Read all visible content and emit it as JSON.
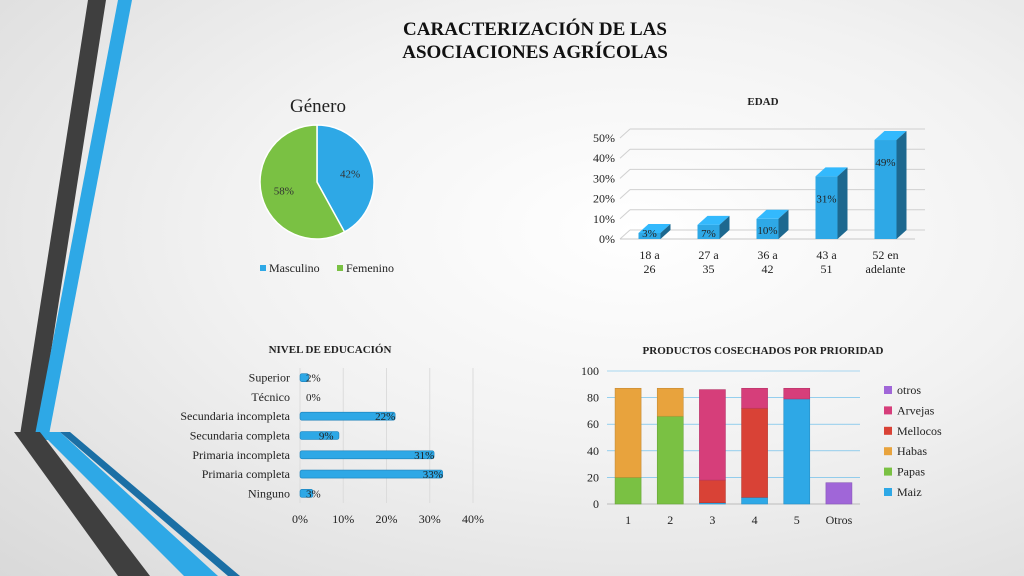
{
  "page": {
    "title_line1": "CARACTERIZACIÓN DE LAS",
    "title_line2": "ASOCIACIONES AGRÍCOLAS"
  },
  "colors": {
    "blue": "#2ea8e6",
    "green": "#7ac143",
    "orange": "#e8a33d",
    "red": "#d94236",
    "pink": "#d63e7a",
    "purple": "#a066d8",
    "dark_stripe": "#3f3f3f"
  },
  "chart_data": [
    {
      "id": "genero",
      "type": "pie",
      "title": "Género",
      "labels": [
        "Masculino",
        "Femenino"
      ],
      "values": [
        42,
        58
      ],
      "data_labels": [
        "42%",
        "58%"
      ],
      "legend": "bottom"
    },
    {
      "id": "edad",
      "type": "bar",
      "title": "EDAD",
      "categories": [
        "18 a  26",
        "27 a 35",
        "36 a 42",
        "43 a 51",
        "52 en adelante"
      ],
      "values": [
        3,
        7,
        10,
        31,
        49
      ],
      "data_labels": [
        "3%",
        "7%",
        "10%",
        "31%",
        "49%"
      ],
      "yticks": [
        "0%",
        "10%",
        "20%",
        "30%",
        "40%",
        "50%"
      ],
      "ylim": [
        0,
        50
      ],
      "grid": true,
      "style": "3d-columns"
    },
    {
      "id": "educacion",
      "type": "bar",
      "orientation": "horizontal",
      "title": "NIVEL DE EDUCACIÓN",
      "categories": [
        "Superior",
        "Técnico",
        "Secundaria incompleta",
        "Secundaria completa",
        "Primaria incompleta",
        "Primaria completa",
        "Ninguno"
      ],
      "values": [
        2,
        0,
        22,
        9,
        31,
        33,
        3
      ],
      "data_labels": [
        "2%",
        "0%",
        "22%",
        "9%",
        "31%",
        "33%",
        "3%"
      ],
      "xticks": [
        "0%",
        "10%",
        "20%",
        "30%",
        "40%"
      ],
      "xlim": [
        0,
        40
      ]
    },
    {
      "id": "productos",
      "type": "bar",
      "stacked": true,
      "title": "PRODUCTOS COSECHADOS POR PRIORIDAD",
      "categories": [
        "1",
        "2",
        "3",
        "4",
        "5",
        "Otros"
      ],
      "series": [
        {
          "name": "Maiz",
          "values": [
            0,
            0,
            1,
            5,
            79,
            0
          ]
        },
        {
          "name": "Papas",
          "values": [
            20,
            66,
            0,
            0,
            0,
            0
          ]
        },
        {
          "name": "Habas",
          "values": [
            67,
            21,
            0,
            0,
            0,
            0
          ]
        },
        {
          "name": "Mellocos",
          "values": [
            0,
            0,
            17,
            67,
            0,
            0
          ]
        },
        {
          "name": "Arvejas",
          "values": [
            0,
            0,
            68,
            15,
            8,
            0
          ]
        },
        {
          "name": "otros",
          "values": [
            0,
            0,
            0,
            0,
            0,
            16
          ]
        }
      ],
      "yticks": [
        "0",
        "20",
        "40",
        "60",
        "80",
        "100"
      ],
      "ylim": [
        0,
        100
      ],
      "legend": "right",
      "grid": true
    }
  ]
}
